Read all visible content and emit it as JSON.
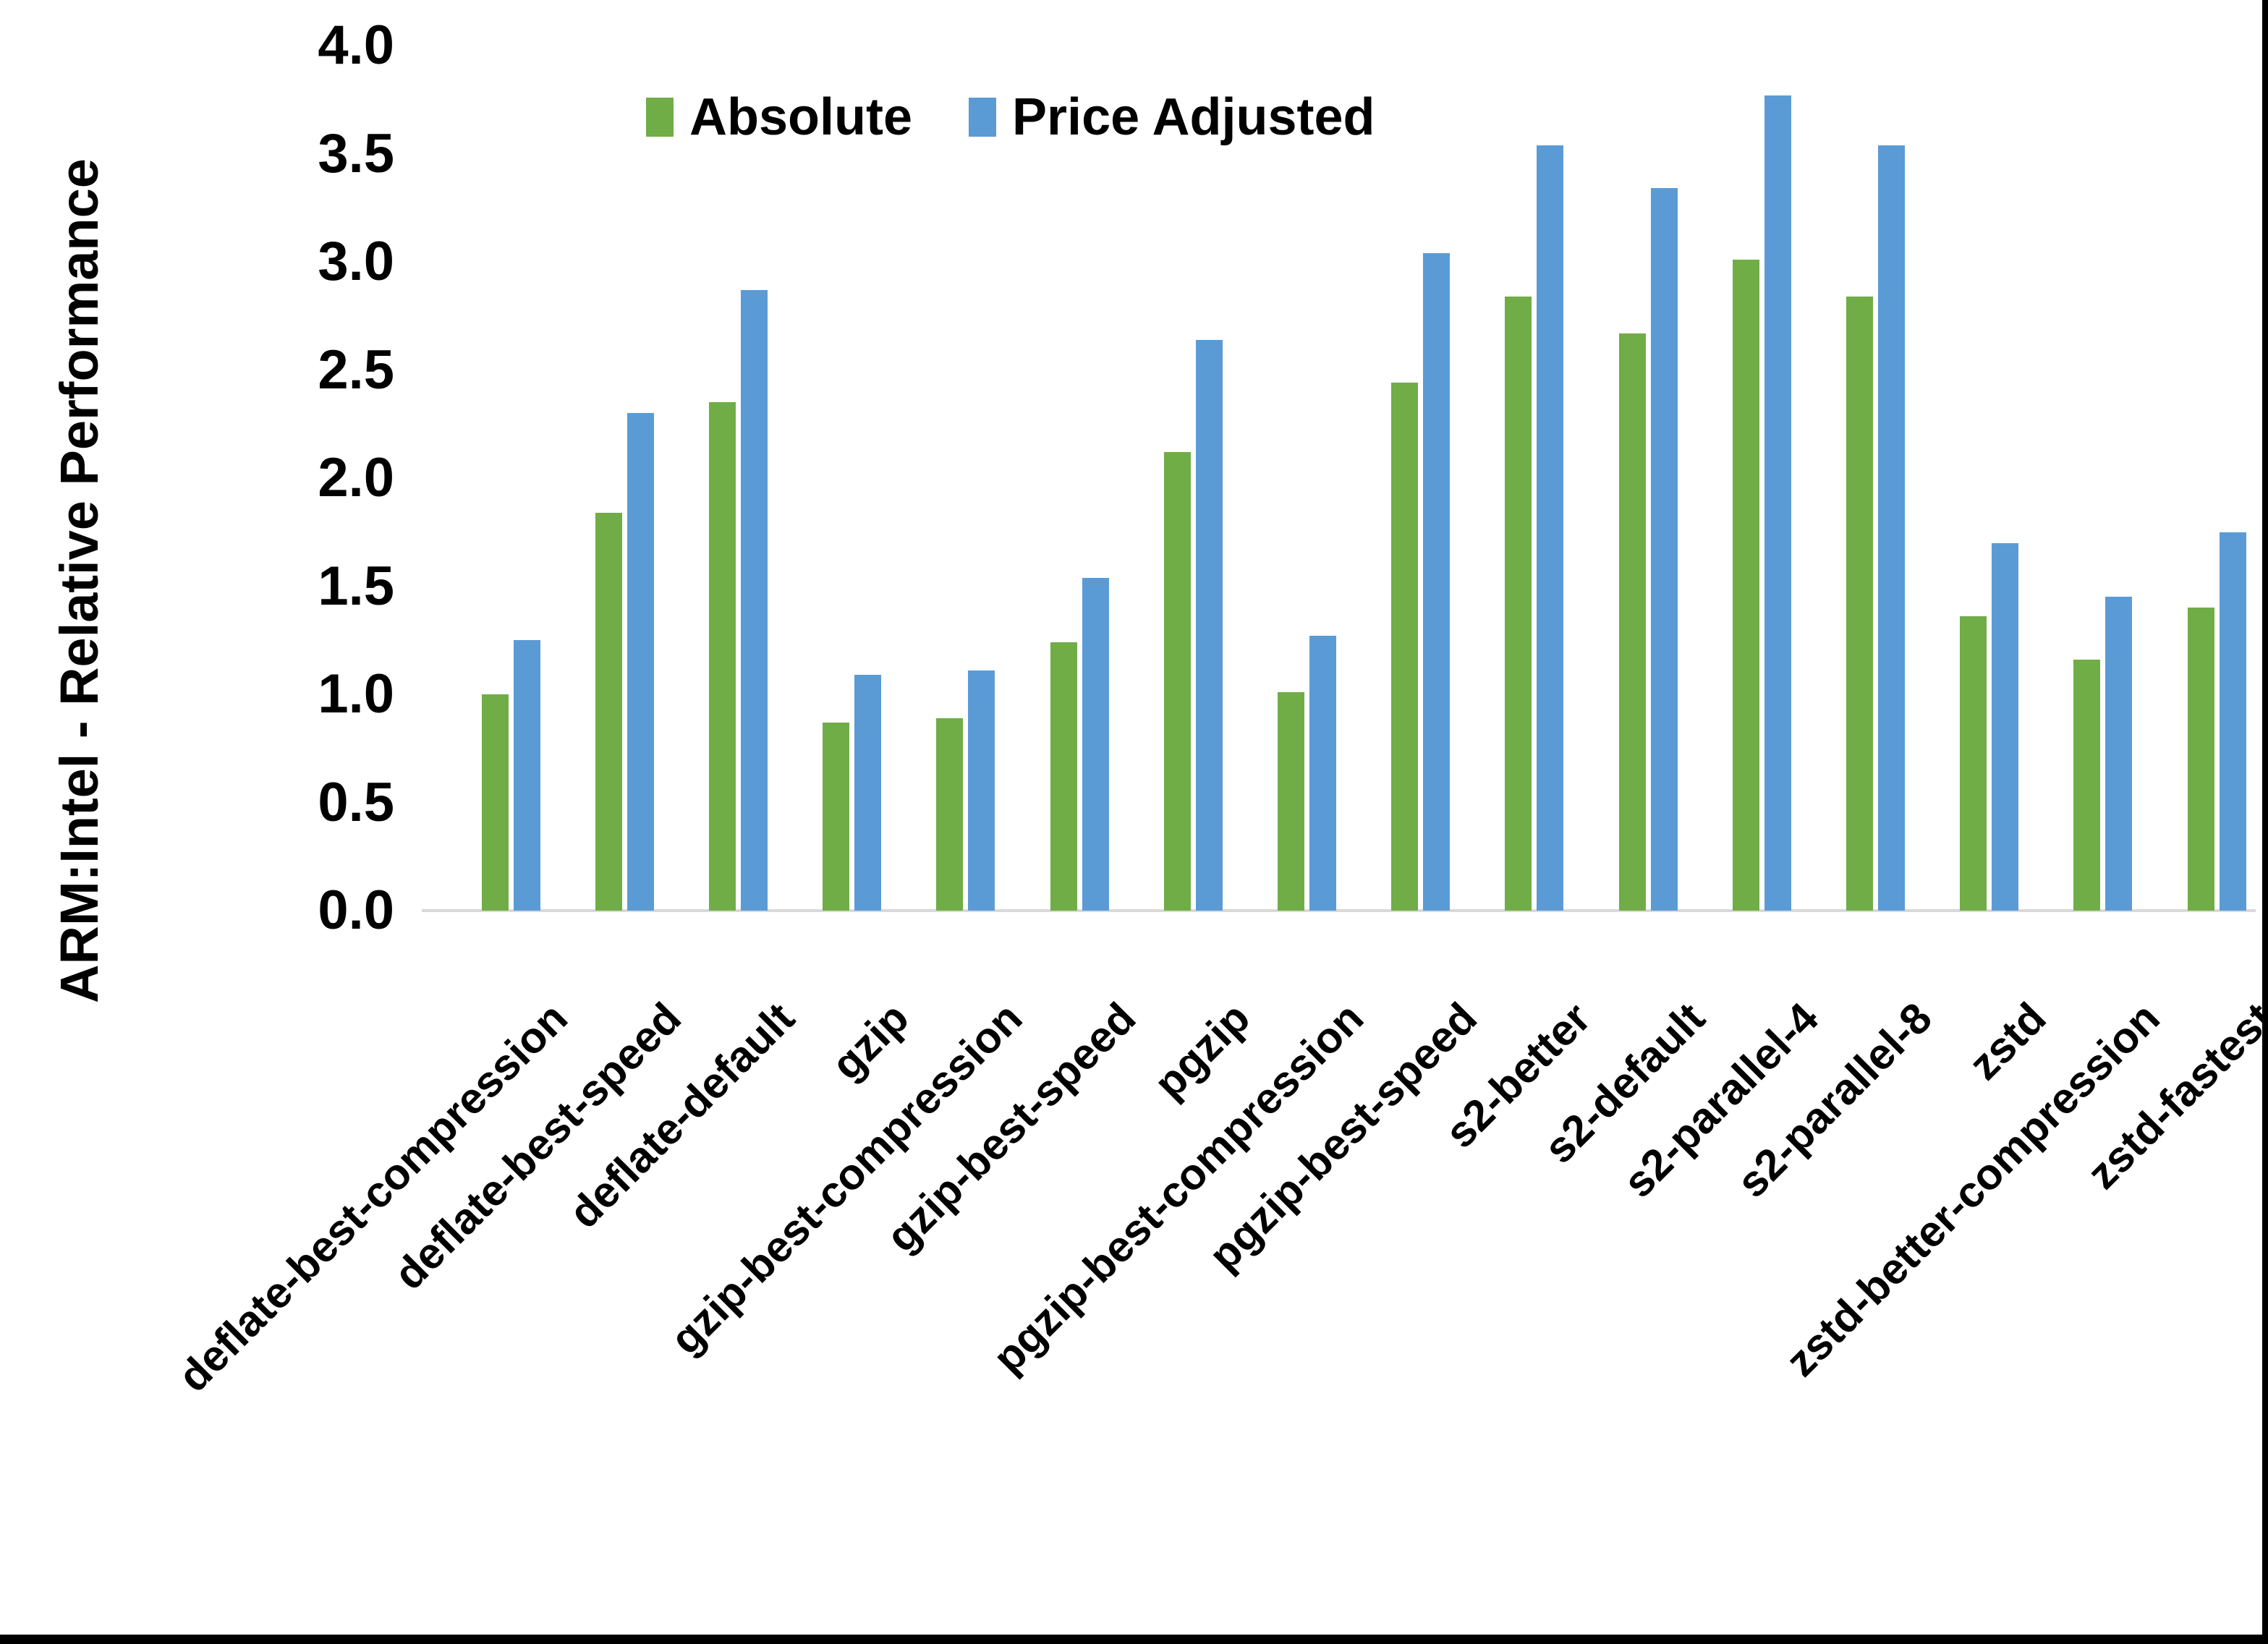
{
  "chart_data": {
    "type": "bar",
    "title": "",
    "xlabel": "",
    "ylabel": "ARM:Intel - Relative Performance",
    "ylim": [
      0.0,
      4.0
    ],
    "ytick_step": 0.5,
    "ytick_labels": [
      "0.0",
      "0.5",
      "1.0",
      "1.5",
      "2.0",
      "2.5",
      "3.0",
      "3.5",
      "4.0"
    ],
    "grid": false,
    "legend_position": "top-center",
    "axis_line_color": "#D9D9D9",
    "text_color": "#000000",
    "categories": [
      "deflate-best-compression",
      "deflate-best-speed",
      "deflate-default",
      "gzip",
      "gzip-best-compression",
      "gzip-best-speed",
      "pgzip",
      "pgzip-best-compression",
      "pgzip-best-speed",
      "s2-better",
      "s2-default",
      "s2-parallel-4",
      "s2-parallel-8",
      "zstd",
      "zstd-better-compression",
      "zstd-fastest"
    ],
    "series": [
      {
        "name": "Absolute",
        "color": "#70AD47",
        "values": [
          1.0,
          1.84,
          2.35,
          0.87,
          0.89,
          1.24,
          2.12,
          1.01,
          2.44,
          2.84,
          2.67,
          3.01,
          2.84,
          1.36,
          1.16,
          1.4
        ]
      },
      {
        "name": "Price Adjusted",
        "color": "#5B9BD5",
        "values": [
          1.25,
          2.3,
          2.87,
          1.09,
          1.11,
          1.54,
          2.64,
          1.27,
          3.04,
          3.54,
          3.34,
          3.77,
          3.54,
          1.7,
          1.45,
          1.75
        ]
      }
    ]
  }
}
